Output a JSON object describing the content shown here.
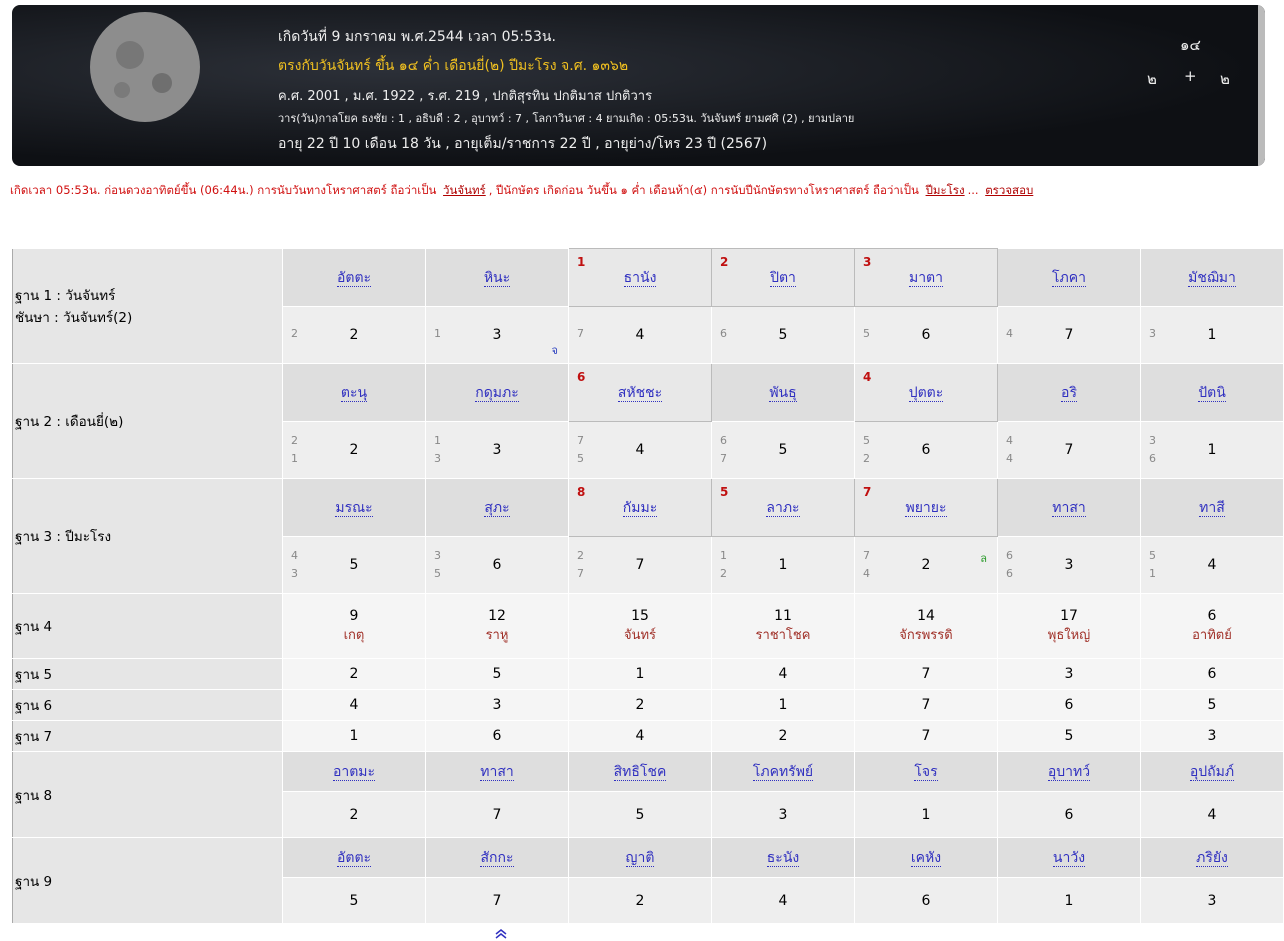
{
  "header": {
    "lines": [
      "เกิดวันที่ 9 มกราคม พ.ศ.2544 เวลา 05:53น.",
      "ตรงกับวันจันทร์ ขึ้น ๑๔ ค่ำ เดือนยี่(๒) ปีมะโรง จ.ศ. ๑๓๖๒",
      "ค.ศ. 2001 , ม.ศ. 1922 , ร.ศ. 219 , ปกติสุรทิน ปกติมาส ปกติวาร",
      "วาร(วัน)กาลโยค ธงชัย : 1 , อธิบดี : 2 , อุบาทว์ : 7 , โลกาวินาศ : 4 ยามเกิด : 05:53น. วันจันทร์ ยามศศิ (2) , ยามปลาย",
      "อายุ 22 ปี 10 เดือน 18 วัน , อายุเต็ม/ราชการ 22 ปี , อายุย่าง/โหร 23 ปี (2567)"
    ],
    "lunar": {
      "top": "๑๔",
      "left": "๒",
      "op": "+",
      "right": "๒"
    }
  },
  "note": {
    "segments": [
      {
        "text": "เกิดเวลา 05:53น. ก่อนดวงอาทิตย์ขึ้น (06:44น.) การนับวันทางโหราศาสตร์ ถือว่าเป็น",
        "link": false
      },
      {
        "text": "วันจันทร์",
        "link": true
      },
      {
        "text": ", ปีนักษัตร เกิดก่อน วันขึ้น ๑ ค่ำ เดือนห้า(๕) การนับปีนักษัตรทางโหราศาสตร์ ถือว่าเป็น",
        "link": false
      },
      {
        "text": "ปีมะโรง",
        "link": true
      },
      {
        "text": "...",
        "link": false
      },
      {
        "text": "ตรวจสอบ",
        "link": true
      }
    ]
  },
  "table": {
    "rows": [
      {
        "kind": "house",
        "label": [
          "ฐาน 1 : วันจันทร์",
          "ชันษา : วันจันทร์(2)"
        ],
        "cells": [
          {
            "name": "อัตตะ",
            "top": 2,
            "value": 2
          },
          {
            "name": "หินะ",
            "top": 1,
            "value": 3,
            "note": "จ",
            "note_color": "#2a3fbf"
          },
          {
            "name": "ธานัง",
            "mark": 1,
            "top": 7,
            "value": 4
          },
          {
            "name": "ปิตา",
            "mark": 2,
            "top": 6,
            "value": 5
          },
          {
            "name": "มาตา",
            "mark": 3,
            "top": 5,
            "value": 6
          },
          {
            "name": "โภคา",
            "top": 4,
            "value": 7
          },
          {
            "name": "มัชฌิมา",
            "top": 3,
            "value": 1
          }
        ]
      },
      {
        "kind": "house",
        "label": [
          "ฐาน 2 : เดือนยี่(๒)"
        ],
        "cells": [
          {
            "name": "ตะนุ",
            "top": 2,
            "bottom": 1,
            "value": 2
          },
          {
            "name": "กดุมภะ",
            "top": 1,
            "bottom": 3,
            "value": 3
          },
          {
            "name": "สหัชชะ",
            "mark": 6,
            "top": 7,
            "bottom": 5,
            "value": 4
          },
          {
            "name": "พันธุ",
            "top": 6,
            "bottom": 7,
            "value": 5
          },
          {
            "name": "ปุตตะ",
            "mark": 4,
            "top": 5,
            "bottom": 2,
            "value": 6
          },
          {
            "name": "อริ",
            "top": 4,
            "bottom": 4,
            "value": 7
          },
          {
            "name": "ปัตนิ",
            "top": 3,
            "bottom": 6,
            "value": 1
          }
        ]
      },
      {
        "kind": "house",
        "label": [
          "ฐาน 3 : ปีมะโรง"
        ],
        "cells": [
          {
            "name": "มรณะ",
            "top": 4,
            "bottom": 3,
            "value": 5
          },
          {
            "name": "สุภะ",
            "top": 3,
            "bottom": 5,
            "value": 6
          },
          {
            "name": "กัมมะ",
            "mark": 8,
            "top": 2,
            "bottom": 7,
            "value": 7
          },
          {
            "name": "ลาภะ",
            "mark": 5,
            "top": 1,
            "bottom": 2,
            "value": 1
          },
          {
            "name": "พยายะ",
            "mark": 7,
            "top": 7,
            "bottom": 4,
            "value": 2,
            "note": "ล",
            "note_color": "#2a9a2a"
          },
          {
            "name": "ทาสา",
            "top": 6,
            "bottom": 6,
            "value": 3
          },
          {
            "name": "ทาสี",
            "top": 5,
            "bottom": 1,
            "value": 4
          }
        ]
      },
      {
        "kind": "planet",
        "label": [
          "ฐาน 4"
        ],
        "cells": [
          {
            "value": 9,
            "name": "เกตุ"
          },
          {
            "value": 12,
            "name": "ราหู"
          },
          {
            "value": 15,
            "name": "จันทร์"
          },
          {
            "value": 11,
            "name": "ราชาโชค"
          },
          {
            "value": 14,
            "name": "จักรพรรดิ"
          },
          {
            "value": 17,
            "name": "พุธใหญ่"
          },
          {
            "value": 6,
            "name": "อาทิตย์"
          }
        ]
      },
      {
        "kind": "plain",
        "label": [
          "ฐาน 5"
        ],
        "cells": [
          {
            "value": 2
          },
          {
            "value": 5
          },
          {
            "value": 1
          },
          {
            "value": 4
          },
          {
            "value": 7
          },
          {
            "value": 3
          },
          {
            "value": 6
          }
        ]
      },
      {
        "kind": "plain",
        "label": [
          "ฐาน 6"
        ],
        "cells": [
          {
            "value": 4
          },
          {
            "value": 3
          },
          {
            "value": 2
          },
          {
            "value": 1
          },
          {
            "value": 7
          },
          {
            "value": 6
          },
          {
            "value": 5
          }
        ]
      },
      {
        "kind": "plain",
        "label": [
          "ฐาน 7"
        ],
        "cells": [
          {
            "value": 1
          },
          {
            "value": 6
          },
          {
            "value": 4
          },
          {
            "value": 2
          },
          {
            "value": 7
          },
          {
            "value": 5
          },
          {
            "value": 3
          }
        ]
      },
      {
        "kind": "pair",
        "label": [
          "ฐาน 8"
        ],
        "cells": [
          {
            "name": "อาตมะ",
            "value": 2
          },
          {
            "name": "ทาสา",
            "value": 7
          },
          {
            "name": "สิทธิโชค",
            "value": 5
          },
          {
            "name": "โภคทรัพย์",
            "value": 3
          },
          {
            "name": "โจร",
            "value": 1
          },
          {
            "name": "อุบาทว์",
            "value": 6
          },
          {
            "name": "อุปถัมภ์",
            "value": 4
          }
        ]
      },
      {
        "kind": "pair",
        "label": [
          "ฐาน 9"
        ],
        "cells": [
          {
            "name": "อัตตะ",
            "value": 5
          },
          {
            "name": "สักกะ",
            "value": 7
          },
          {
            "name": "ญาติ",
            "value": 2
          },
          {
            "name": "ธะนัง",
            "value": 4
          },
          {
            "name": "เคหัง",
            "value": 6
          },
          {
            "name": "นาวัง",
            "value": 1
          },
          {
            "name": "ภริยัง",
            "value": 3
          }
        ]
      }
    ]
  }
}
